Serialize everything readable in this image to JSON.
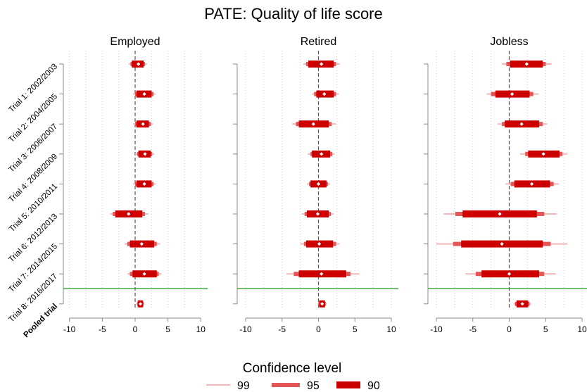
{
  "chart_data": {
    "type": "forest",
    "title": "PATE: Quality of life score",
    "xlim": [
      -10,
      10
    ],
    "x_ticks": [
      -10,
      -5,
      0,
      5,
      10
    ],
    "row_labels": [
      "Trial 1: 2002/2003",
      "Trial 2: 2004/2005",
      "Trial 3: 2006/2007",
      "Trial 4: 2008/2009",
      "Trial 5: 2010/2011",
      "Trial 6: 2012/2013",
      "Trial 7: 2014/2015",
      "Trial 8: 2016/2017",
      "Pooled trial"
    ],
    "pooled_label_bold": true,
    "reference_line": 0,
    "separator_color": "#1a9a1a",
    "panels": [
      {
        "title": "Employed",
        "estimates": [
          {
            "est": 0.5,
            "ci90": [
              -0.5,
              1.3
            ],
            "ci95": [
              -0.7,
              1.5
            ],
            "ci99": [
              -1.0,
              1.8
            ]
          },
          {
            "est": 1.4,
            "ci90": [
              0.2,
              2.5
            ],
            "ci95": [
              0.0,
              2.8
            ],
            "ci99": [
              -0.3,
              3.1
            ]
          },
          {
            "est": 1.2,
            "ci90": [
              0.2,
              2.1
            ],
            "ci95": [
              0.0,
              2.4
            ],
            "ci99": [
              -0.3,
              2.7
            ]
          },
          {
            "est": 1.5,
            "ci90": [
              0.5,
              2.4
            ],
            "ci95": [
              0.3,
              2.6
            ],
            "ci99": [
              0.0,
              2.9
            ]
          },
          {
            "est": 1.4,
            "ci90": [
              0.2,
              2.5
            ],
            "ci95": [
              0.0,
              2.8
            ],
            "ci99": [
              -0.3,
              3.1
            ]
          },
          {
            "est": -1.0,
            "ci90": [
              -3.0,
              1.1
            ],
            "ci95": [
              -3.4,
              1.5
            ],
            "ci99": [
              -3.8,
              2.0
            ]
          },
          {
            "est": 1.0,
            "ci90": [
              -0.8,
              2.9
            ],
            "ci95": [
              -1.2,
              3.3
            ],
            "ci99": [
              -1.6,
              3.8
            ]
          },
          {
            "est": 1.4,
            "ci90": [
              -0.4,
              3.3
            ],
            "ci95": [
              -0.8,
              3.6
            ],
            "ci99": [
              -1.2,
              4.0
            ]
          },
          {
            "est": 0.8,
            "ci90": [
              0.4,
              1.2
            ],
            "ci95": [
              0.3,
              1.3
            ],
            "ci99": [
              0.2,
              1.4
            ]
          }
        ]
      },
      {
        "title": "Retired",
        "estimates": [
          {
            "est": 0.4,
            "ci90": [
              -1.4,
              2.1
            ],
            "ci95": [
              -1.7,
              2.4
            ],
            "ci99": [
              -2.1,
              2.9
            ]
          },
          {
            "est": 0.8,
            "ci90": [
              -0.3,
              2.1
            ],
            "ci95": [
              -0.6,
              2.4
            ],
            "ci99": [
              -0.9,
              2.8
            ]
          },
          {
            "est": -0.7,
            "ci90": [
              -2.7,
              1.4
            ],
            "ci95": [
              -3.1,
              1.8
            ],
            "ci99": [
              -3.6,
              2.4
            ]
          },
          {
            "est": 0.4,
            "ci90": [
              -0.9,
              1.6
            ],
            "ci95": [
              -1.1,
              1.9
            ],
            "ci99": [
              -1.5,
              2.2
            ]
          },
          {
            "est": 0.0,
            "ci90": [
              -1.1,
              1.1
            ],
            "ci95": [
              -1.3,
              1.3
            ],
            "ci99": [
              -1.6,
              1.6
            ]
          },
          {
            "est": -0.1,
            "ci90": [
              -1.6,
              1.4
            ],
            "ci95": [
              -1.9,
              1.7
            ],
            "ci99": [
              -2.3,
              2.1
            ]
          },
          {
            "est": 0.1,
            "ci90": [
              -1.7,
              2.0
            ],
            "ci95": [
              -2.0,
              2.4
            ],
            "ci99": [
              -2.5,
              2.9
            ]
          },
          {
            "est": 0.4,
            "ci90": [
              -2.7,
              3.8
            ],
            "ci95": [
              -3.4,
              4.4
            ],
            "ci99": [
              -4.4,
              5.6
            ]
          },
          {
            "est": 0.5,
            "ci90": [
              0.1,
              0.9
            ],
            "ci95": [
              0.0,
              1.0
            ],
            "ci99": [
              -0.1,
              1.1
            ]
          }
        ]
      },
      {
        "title": "Jobless",
        "estimates": [
          {
            "est": 2.4,
            "ci90": [
              0.1,
              4.6
            ],
            "ci95": [
              -0.4,
              5.0
            ],
            "ci99": [
              -1.0,
              5.8
            ]
          },
          {
            "est": 0.4,
            "ci90": [
              -1.9,
              2.8
            ],
            "ci95": [
              -2.5,
              3.3
            ],
            "ci99": [
              -3.1,
              4.0
            ]
          },
          {
            "est": 1.7,
            "ci90": [
              -0.6,
              4.1
            ],
            "ci95": [
              -1.0,
              4.6
            ],
            "ci99": [
              -1.6,
              5.2
            ]
          },
          {
            "est": 4.7,
            "ci90": [
              2.6,
              6.9
            ],
            "ci95": [
              2.2,
              7.3
            ],
            "ci99": [
              1.5,
              8.0
            ]
          },
          {
            "est": 3.1,
            "ci90": [
              0.7,
              5.6
            ],
            "ci95": [
              0.2,
              6.1
            ],
            "ci99": [
              -0.5,
              6.8
            ]
          },
          {
            "est": -1.3,
            "ci90": [
              -6.4,
              3.8
            ],
            "ci95": [
              -7.4,
              4.8
            ],
            "ci99": [
              -9.0,
              6.5
            ]
          },
          {
            "est": -1.0,
            "ci90": [
              -6.6,
              4.6
            ],
            "ci95": [
              -7.7,
              5.7
            ],
            "ci99": [
              -10.0,
              8.0
            ]
          },
          {
            "est": 0.0,
            "ci90": [
              -3.8,
              4.1
            ],
            "ci95": [
              -4.6,
              4.8
            ],
            "ci99": [
              -6.0,
              6.4
            ]
          },
          {
            "est": 1.8,
            "ci90": [
              1.0,
              2.6
            ],
            "ci95": [
              0.8,
              2.8
            ],
            "ci99": [
              0.6,
              3.0
            ]
          }
        ]
      }
    ],
    "legend": {
      "title": "Confidence level",
      "position": "bottom",
      "items": [
        {
          "label": "99",
          "color": "#f4b6b6"
        },
        {
          "label": "95",
          "color": "#e25656"
        },
        {
          "label": "90",
          "color": "#cc0000"
        }
      ]
    },
    "colors": {
      "ci90": "#cc0000",
      "ci95": "#e25656",
      "ci99": "#f4b6b6",
      "point": "#ffffff",
      "grid": "#cccccc",
      "axis": "#888888"
    }
  }
}
